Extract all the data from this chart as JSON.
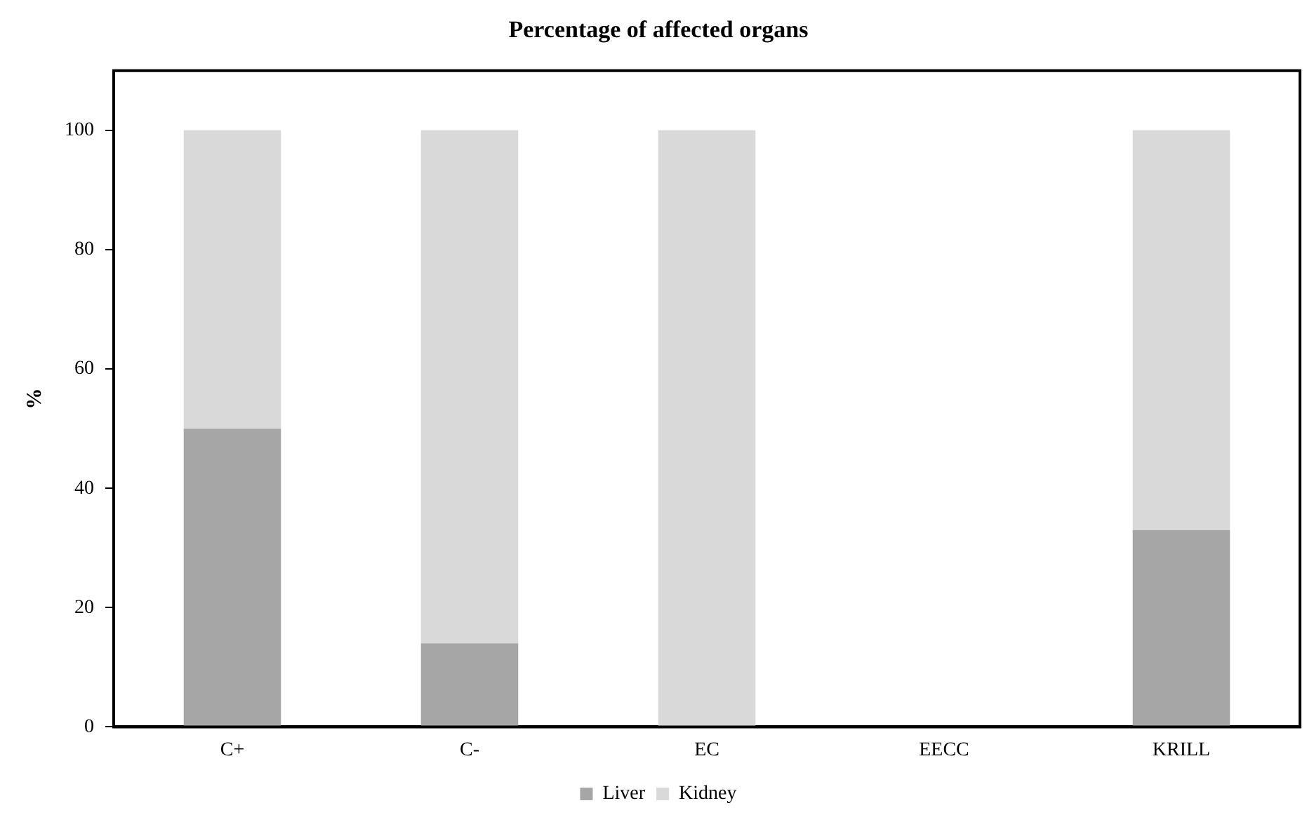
{
  "chart_data": {
    "type": "bar",
    "title": "Percentage of affected organs",
    "ylabel": "%",
    "categories": [
      "C+",
      "C-",
      "EC",
      "EECC",
      "KRILL"
    ],
    "stacked": true,
    "series": [
      {
        "name": "Liver",
        "color": "#a6a6a6",
        "values": [
          50,
          14,
          0,
          0,
          33
        ]
      },
      {
        "name": "Kidney",
        "color": "#d9d9d9",
        "values": [
          50,
          86,
          100,
          0,
          67
        ]
      }
    ],
    "ylim": [
      0,
      110
    ],
    "yticks": [
      0,
      20,
      40,
      60,
      80,
      100
    ],
    "grid": false,
    "legend": "bottom"
  }
}
